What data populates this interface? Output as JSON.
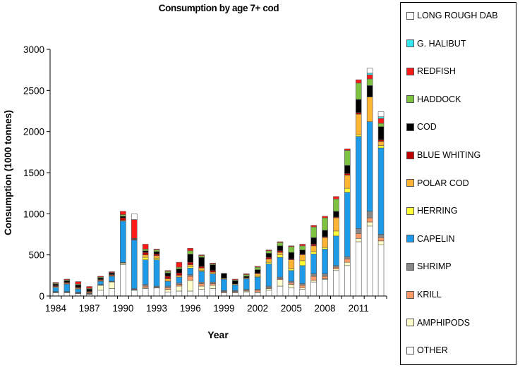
{
  "chart_data": {
    "type": "bar",
    "stacked": true,
    "title": "Consumption by age 7+ cod",
    "xlabel": "Year",
    "ylabel": "Consumption (1000 tonnes)",
    "ylim": [
      0,
      3000
    ],
    "yticks": [
      0,
      500,
      1000,
      1500,
      2000,
      2500,
      3000
    ],
    "xtick_labels": [
      "1984",
      "1987",
      "1990",
      "1993",
      "1996",
      "1999",
      "2002",
      "2005",
      "2008",
      "2011"
    ],
    "categories": [
      1984,
      1985,
      1986,
      1987,
      1988,
      1989,
      1990,
      1991,
      1992,
      1993,
      1994,
      1995,
      1996,
      1997,
      1998,
      1999,
      2000,
      2001,
      2002,
      2003,
      2004,
      2005,
      2006,
      2007,
      2008,
      2009,
      2010,
      2011,
      2012,
      2013
    ],
    "series": [
      {
        "name": "OTHER",
        "color": "#ffffff",
        "values": [
          40,
          40,
          30,
          20,
          70,
          90,
          380,
          70,
          90,
          100,
          50,
          60,
          60,
          80,
          90,
          40,
          40,
          50,
          40,
          70,
          120,
          100,
          80,
          170,
          200,
          310,
          370,
          660,
          850,
          620
        ]
      },
      {
        "name": "AMPHIPODS",
        "color": "#ffffcc",
        "values": [
          5,
          5,
          5,
          5,
          60,
          80,
          20,
          5,
          10,
          5,
          30,
          60,
          130,
          40,
          40,
          5,
          5,
          10,
          10,
          20,
          80,
          40,
          20,
          20,
          10,
          20,
          40,
          40,
          50,
          50
        ]
      },
      {
        "name": "KRILL",
        "color": "#ff9966",
        "values": [
          5,
          5,
          5,
          5,
          5,
          5,
          5,
          5,
          20,
          5,
          20,
          20,
          50,
          30,
          20,
          10,
          10,
          10,
          20,
          10,
          10,
          20,
          30,
          50,
          30,
          20,
          40,
          60,
          50,
          40
        ]
      },
      {
        "name": "SHRIMP",
        "color": "#888888",
        "values": [
          5,
          5,
          5,
          5,
          5,
          5,
          5,
          10,
          20,
          10,
          20,
          20,
          20,
          20,
          20,
          10,
          10,
          10,
          10,
          20,
          20,
          20,
          20,
          30,
          30,
          20,
          30,
          60,
          80,
          40
        ]
      },
      {
        "name": "CAPELIN",
        "color": "#1e9be8",
        "values": [
          50,
          90,
          40,
          0,
          40,
          60,
          500,
          590,
          300,
          320,
          60,
          70,
          80,
          130,
          100,
          140,
          70,
          130,
          150,
          270,
          240,
          130,
          220,
          240,
          300,
          360,
          780,
          1120,
          1090,
          1050
        ]
      },
      {
        "name": "HERRING",
        "color": "#ffff33",
        "values": [
          0,
          0,
          0,
          0,
          0,
          0,
          0,
          0,
          30,
          20,
          0,
          0,
          20,
          10,
          0,
          0,
          0,
          0,
          10,
          20,
          30,
          20,
          60,
          30,
          20,
          60,
          50,
          20,
          0,
          30
        ]
      },
      {
        "name": "POLAR COD",
        "color": "#ffb533",
        "values": [
          10,
          10,
          10,
          10,
          10,
          10,
          10,
          0,
          30,
          30,
          30,
          20,
          20,
          30,
          20,
          10,
          10,
          10,
          30,
          40,
          30,
          110,
          70,
          70,
          120,
          160,
          160,
          250,
          300,
          50
        ]
      },
      {
        "name": "BLUE WHITING",
        "color": "#c00000",
        "values": [
          10,
          10,
          10,
          10,
          10,
          10,
          30,
          10,
          30,
          20,
          30,
          30,
          30,
          20,
          20,
          0,
          0,
          0,
          10,
          20,
          20,
          10,
          10,
          20,
          10,
          10,
          20,
          20,
          0,
          20
        ]
      },
      {
        "name": "COD",
        "color": "#000000",
        "values": [
          20,
          20,
          30,
          30,
          20,
          20,
          20,
          5,
          20,
          30,
          40,
          50,
          100,
          110,
          70,
          60,
          40,
          20,
          40,
          50,
          60,
          80,
          50,
          80,
          80,
          70,
          100,
          160,
          140,
          160
        ]
      },
      {
        "name": "HADDOCK",
        "color": "#7ec242",
        "values": [
          10,
          10,
          10,
          10,
          10,
          5,
          20,
          5,
          20,
          20,
          20,
          20,
          40,
          20,
          10,
          0,
          10,
          20,
          30,
          30,
          40,
          70,
          50,
          130,
          150,
          150,
          180,
          200,
          80,
          40
        ]
      },
      {
        "name": "REDFISH",
        "color": "#ff1a1a",
        "values": [
          10,
          10,
          30,
          20,
          10,
          10,
          40,
          230,
          60,
          10,
          10,
          60,
          30,
          10,
          10,
          0,
          10,
          10,
          10,
          10,
          10,
          10,
          20,
          20,
          20,
          30,
          20,
          40,
          50,
          60
        ]
      },
      {
        "name": "G. HALIBUT",
        "color": "#33e8f0",
        "values": [
          0,
          0,
          0,
          0,
          0,
          0,
          0,
          0,
          0,
          0,
          0,
          0,
          0,
          0,
          0,
          0,
          0,
          0,
          0,
          0,
          0,
          0,
          0,
          0,
          0,
          0,
          0,
          0,
          20,
          20
        ]
      },
      {
        "name": "LONG ROUGH DAB",
        "color": "#ffffff",
        "values": [
          0,
          0,
          0,
          0,
          0,
          0,
          0,
          70,
          0,
          0,
          0,
          0,
          0,
          0,
          0,
          0,
          0,
          0,
          0,
          0,
          0,
          0,
          0,
          0,
          0,
          0,
          0,
          0,
          60,
          60
        ]
      }
    ],
    "legend_position": "right",
    "legend_order": [
      "LONG ROUGH DAB",
      "G. HALIBUT",
      "REDFISH",
      "HADDOCK",
      "COD",
      "BLUE WHITING",
      "POLAR COD",
      "HERRING",
      "CAPELIN",
      "SHRIMP",
      "KRILL",
      "AMPHIPODS",
      "OTHER"
    ],
    "grid": false
  }
}
